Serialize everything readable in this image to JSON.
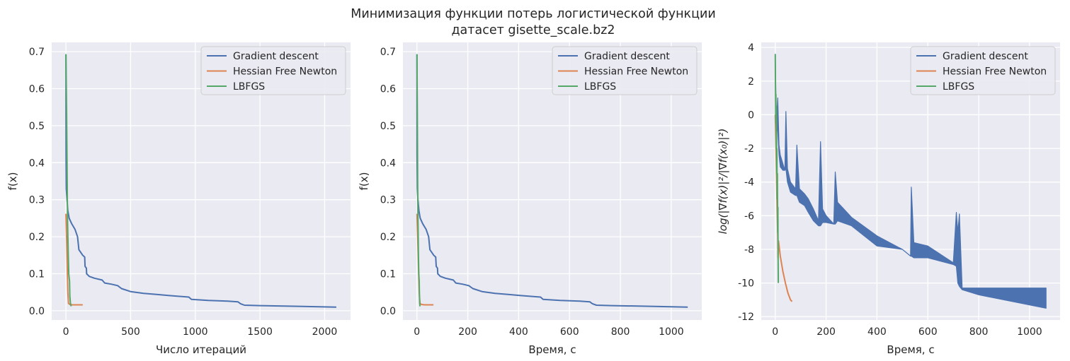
{
  "figure": {
    "title_line1": "Минимизация функции потерь логистической функции",
    "title_line2": "датасет gisette_scale.bz2"
  },
  "colors": {
    "background": "#eaeaf2",
    "grid": "#ffffff",
    "gd": "#4c72b0",
    "hfn": "#dd8452",
    "lbfgs": "#55a868"
  },
  "chart_data": [
    {
      "type": "line",
      "xlabel": "Число итераций",
      "ylabel": "f(x)",
      "xlim": [
        -110,
        2200
      ],
      "ylim": [
        -0.025,
        0.725
      ],
      "xticks": [
        0,
        500,
        1000,
        1500,
        2000
      ],
      "yticks": [
        0.0,
        0.1,
        0.2,
        0.3,
        0.4,
        0.5,
        0.6,
        0.7
      ],
      "grid": true,
      "legend": "top-right",
      "series": [
        {
          "name": "Gradient descent",
          "color_key": "gd",
          "points": [
            [
              0,
              0.693
            ],
            [
              1,
              0.42
            ],
            [
              3,
              0.33
            ],
            [
              8,
              0.3
            ],
            [
              15,
              0.27
            ],
            [
              25,
              0.25
            ],
            [
              45,
              0.235
            ],
            [
              70,
              0.22
            ],
            [
              90,
              0.2
            ],
            [
              100,
              0.165
            ],
            [
              130,
              0.15
            ],
            [
              145,
              0.145
            ],
            [
              148,
              0.12
            ],
            [
              158,
              0.115
            ],
            [
              160,
              0.1
            ],
            [
              180,
              0.093
            ],
            [
              220,
              0.088
            ],
            [
              280,
              0.083
            ],
            [
              300,
              0.075
            ],
            [
              350,
              0.072
            ],
            [
              400,
              0.068
            ],
            [
              430,
              0.06
            ],
            [
              500,
              0.052
            ],
            [
              600,
              0.047
            ],
            [
              700,
              0.044
            ],
            [
              800,
              0.041
            ],
            [
              950,
              0.037
            ],
            [
              970,
              0.031
            ],
            [
              1100,
              0.028
            ],
            [
              1250,
              0.026
            ],
            [
              1330,
              0.024
            ],
            [
              1350,
              0.019
            ],
            [
              1380,
              0.015
            ],
            [
              1500,
              0.014
            ],
            [
              1800,
              0.012
            ],
            [
              2090,
              0.01
            ]
          ]
        },
        {
          "name": "Hessian Free Newton",
          "color_key": "hfn",
          "points": [
            [
              0,
              0.262
            ],
            [
              5,
              0.2
            ],
            [
              10,
              0.12
            ],
            [
              15,
              0.05
            ],
            [
              20,
              0.02
            ],
            [
              30,
              0.017
            ],
            [
              50,
              0.016
            ],
            [
              100,
              0.016
            ],
            [
              130,
              0.016
            ]
          ]
        },
        {
          "name": "LBFGS",
          "color_key": "lbfgs",
          "points": [
            [
              0,
              0.693
            ],
            [
              5,
              0.55
            ],
            [
              10,
              0.35
            ],
            [
              12,
              0.25
            ],
            [
              18,
              0.15
            ],
            [
              22,
              0.1
            ],
            [
              28,
              0.08
            ],
            [
              30,
              0.04
            ],
            [
              35,
              0.02
            ],
            [
              40,
              0.012
            ]
          ]
        }
      ]
    },
    {
      "type": "line",
      "xlabel": "Время, с",
      "ylabel": "f(x)",
      "xlim": [
        -55,
        1120
      ],
      "ylim": [
        -0.025,
        0.725
      ],
      "xticks": [
        0,
        200,
        400,
        600,
        800,
        1000
      ],
      "yticks": [
        0.0,
        0.1,
        0.2,
        0.3,
        0.4,
        0.5,
        0.6,
        0.7
      ],
      "grid": true,
      "legend": "top-right",
      "series": [
        {
          "name": "Gradient descent",
          "color_key": "gd",
          "points": [
            [
              0,
              0.693
            ],
            [
              0.5,
              0.42
            ],
            [
              1.5,
              0.33
            ],
            [
              4,
              0.3
            ],
            [
              8,
              0.27
            ],
            [
              13,
              0.25
            ],
            [
              23,
              0.235
            ],
            [
              36,
              0.22
            ],
            [
              46,
              0.2
            ],
            [
              51,
              0.165
            ],
            [
              66,
              0.15
            ],
            [
              74,
              0.145
            ],
            [
              76,
              0.12
            ],
            [
              81,
              0.115
            ],
            [
              82,
              0.1
            ],
            [
              92,
              0.093
            ],
            [
              112,
              0.088
            ],
            [
              143,
              0.083
            ],
            [
              153,
              0.075
            ],
            [
              179,
              0.072
            ],
            [
              204,
              0.068
            ],
            [
              220,
              0.06
            ],
            [
              256,
              0.052
            ],
            [
              307,
              0.047
            ],
            [
              358,
              0.044
            ],
            [
              409,
              0.041
            ],
            [
              486,
              0.037
            ],
            [
              496,
              0.031
            ],
            [
              563,
              0.028
            ],
            [
              640,
              0.026
            ],
            [
              680,
              0.024
            ],
            [
              690,
              0.019
            ],
            [
              706,
              0.015
            ],
            [
              767,
              0.014
            ],
            [
              921,
              0.012
            ],
            [
              1065,
              0.01
            ]
          ]
        },
        {
          "name": "Hessian Free Newton",
          "color_key": "hfn",
          "points": [
            [
              0,
              0.262
            ],
            [
              3,
              0.2
            ],
            [
              6,
              0.12
            ],
            [
              9,
              0.05
            ],
            [
              12,
              0.02
            ],
            [
              18,
              0.017
            ],
            [
              30,
              0.016
            ],
            [
              50,
              0.016
            ],
            [
              65,
              0.016
            ]
          ]
        },
        {
          "name": "LBFGS",
          "color_key": "lbfgs",
          "points": [
            [
              0,
              0.693
            ],
            [
              1.5,
              0.55
            ],
            [
              3,
              0.35
            ],
            [
              4,
              0.25
            ],
            [
              6,
              0.15
            ],
            [
              7.5,
              0.1
            ],
            [
              9,
              0.08
            ],
            [
              10,
              0.04
            ],
            [
              11,
              0.02
            ],
            [
              12,
              0.012
            ]
          ]
        }
      ]
    },
    {
      "type": "line",
      "xlabel": "Время, с",
      "ylabel": "log(|∇f(x)|²/|∇f(x₀)|²)",
      "xlim": [
        -55,
        1120
      ],
      "ylim": [
        -12.2,
        4.3
      ],
      "xticks": [
        0,
        200,
        400,
        600,
        800,
        1000
      ],
      "yticks": [
        4,
        2,
        0,
        -2,
        -4,
        -6,
        -8,
        -10,
        -12
      ],
      "grid": true,
      "legend": "top-right",
      "series": [
        {
          "name": "Gradient descent",
          "color_key": "gd",
          "band": true,
          "upper": [
            [
              0,
              3.6
            ],
            [
              2,
              1.6
            ],
            [
              5,
              -0.5
            ],
            [
              10,
              1.0
            ],
            [
              15,
              -1.8
            ],
            [
              20,
              -2.4
            ],
            [
              30,
              -2.9
            ],
            [
              38,
              -3.3
            ],
            [
              42,
              0.2
            ],
            [
              48,
              -3.2
            ],
            [
              60,
              -4.0
            ],
            [
              80,
              -4.4
            ],
            [
              85,
              -1.8
            ],
            [
              95,
              -4.4
            ],
            [
              115,
              -4.7
            ],
            [
              130,
              -5.0
            ],
            [
              150,
              -5.6
            ],
            [
              170,
              -6.3
            ],
            [
              178,
              -1.6
            ],
            [
              186,
              -5.6
            ],
            [
              200,
              -6.0
            ],
            [
              230,
              -6.5
            ],
            [
              236,
              -3.4
            ],
            [
              245,
              -5.2
            ],
            [
              300,
              -6.1
            ],
            [
              400,
              -7.2
            ],
            [
              500,
              -8.0
            ],
            [
              532,
              -8.4
            ],
            [
              535,
              -4.3
            ],
            [
              545,
              -7.6
            ],
            [
              600,
              -7.8
            ],
            [
              700,
              -8.8
            ],
            [
              712,
              -5.8
            ],
            [
              718,
              -7.0
            ],
            [
              724,
              -5.9
            ],
            [
              735,
              -10.3
            ],
            [
              1065,
              -10.3
            ]
          ],
          "lower": [
            [
              0,
              3.6
            ],
            [
              2,
              1.6
            ],
            [
              5,
              -0.5
            ],
            [
              10,
              -1.0
            ],
            [
              15,
              -2.4
            ],
            [
              20,
              -3.1
            ],
            [
              30,
              -3.3
            ],
            [
              38,
              -3.3
            ],
            [
              42,
              -3.2
            ],
            [
              48,
              -4.0
            ],
            [
              60,
              -4.6
            ],
            [
              80,
              -4.8
            ],
            [
              85,
              -4.8
            ],
            [
              95,
              -5.2
            ],
            [
              115,
              -5.4
            ],
            [
              130,
              -5.8
            ],
            [
              150,
              -6.3
            ],
            [
              170,
              -6.6
            ],
            [
              178,
              -6.6
            ],
            [
              186,
              -6.4
            ],
            [
              200,
              -6.4
            ],
            [
              230,
              -6.5
            ],
            [
              236,
              -6.5
            ],
            [
              245,
              -6.3
            ],
            [
              300,
              -6.6
            ],
            [
              400,
              -7.8
            ],
            [
              500,
              -8.0
            ],
            [
              532,
              -8.4
            ],
            [
              535,
              -8.4
            ],
            [
              545,
              -8.5
            ],
            [
              600,
              -8.5
            ],
            [
              700,
              -8.9
            ],
            [
              712,
              -9.0
            ],
            [
              718,
              -10.0
            ],
            [
              724,
              -10.2
            ],
            [
              735,
              -10.4
            ],
            [
              800,
              -10.7
            ],
            [
              1065,
              -11.5
            ]
          ]
        },
        {
          "name": "Hessian Free Newton",
          "color_key": "hfn",
          "points": [
            [
              0,
              0.0
            ],
            [
              3,
              -2.0
            ],
            [
              6,
              -4.5
            ],
            [
              8,
              -6.0
            ],
            [
              10,
              -7.2
            ],
            [
              11,
              -8.5
            ],
            [
              13,
              -7.5
            ],
            [
              20,
              -8.4
            ],
            [
              30,
              -9.3
            ],
            [
              40,
              -10.0
            ],
            [
              50,
              -10.6
            ],
            [
              60,
              -11.0
            ],
            [
              66,
              -11.1
            ]
          ]
        },
        {
          "name": "LBFGS",
          "color_key": "lbfgs",
          "points": [
            [
              0,
              3.6
            ],
            [
              1,
              1.5
            ],
            [
              2,
              -0.5
            ],
            [
              2.5,
              1.2
            ],
            [
              3.5,
              -2.0
            ],
            [
              4.5,
              0.5
            ],
            [
              5.5,
              -3.5
            ],
            [
              6.5,
              -2.0
            ],
            [
              7.5,
              -5.0
            ],
            [
              8.5,
              -3.5
            ],
            [
              9.5,
              -7.0
            ],
            [
              10.5,
              -5.5
            ],
            [
              11,
              -8.0
            ],
            [
              12,
              -10.0
            ]
          ]
        }
      ]
    }
  ]
}
